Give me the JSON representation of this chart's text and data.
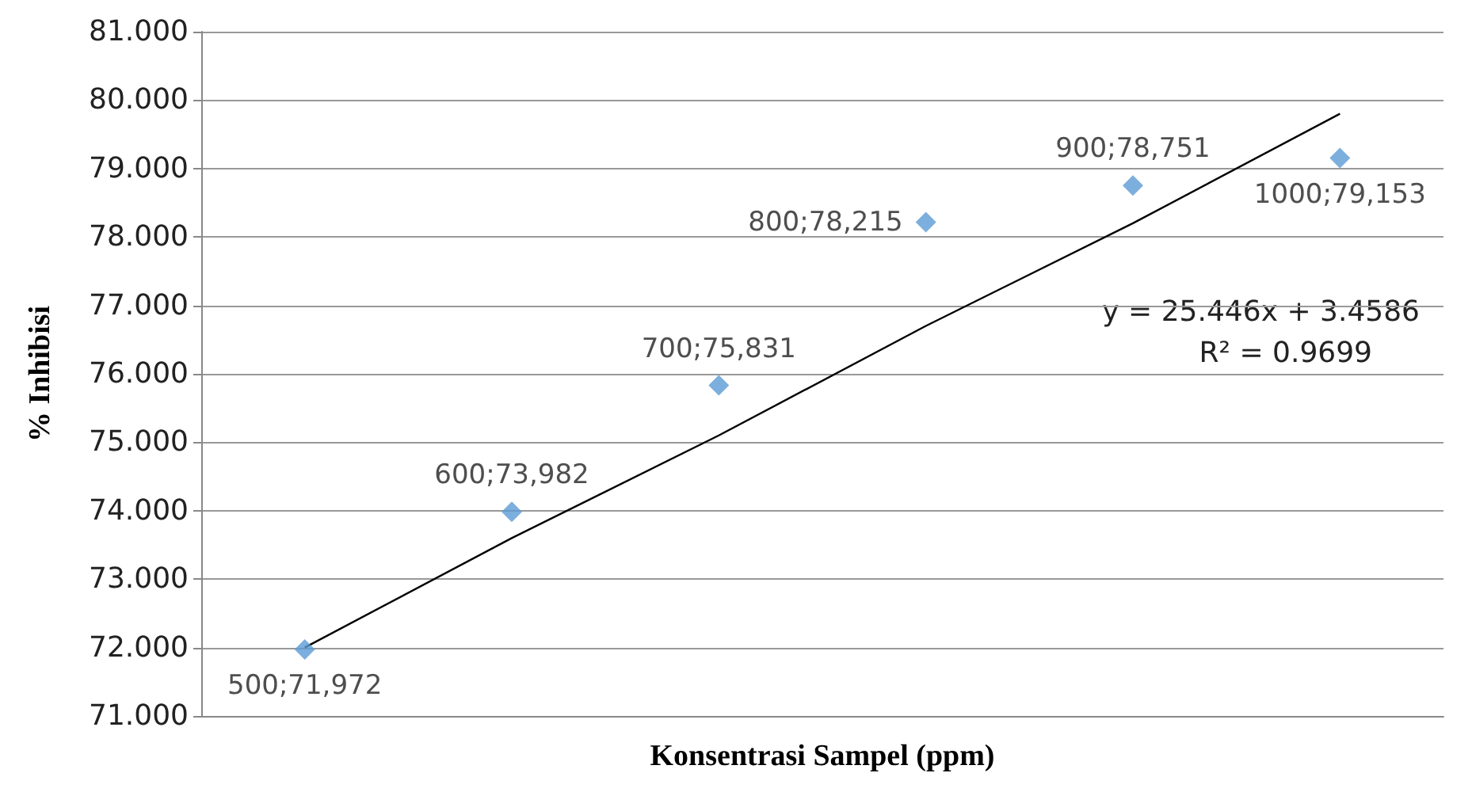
{
  "chart_data": {
    "type": "scatter",
    "xlabel": "Konsentrasi Sampel (ppm)",
    "ylabel": "% Inhibisi",
    "categories": [
      null,
      null,
      null,
      null,
      null,
      null
    ],
    "series": [
      {
        "color": "#5b9bd5",
        "marker": "diamond",
        "values": [
          71.972,
          73.982,
          75.831,
          78.215,
          78.751,
          79.153
        ],
        "value_labels": [
          "500;71,972",
          "600;73,982",
          "700;75,831",
          "800;78,215",
          "900;78,751",
          "1000;79,153"
        ]
      },
      {
        "type": "line",
        "color": "#000000",
        "values": [
          72.0,
          73.6,
          75.1,
          76.7,
          78.2,
          79.8
        ],
        "marker": "none",
        "line_style": "solid"
      }
    ],
    "ylim": [
      71,
      81
    ],
    "yticks": [
      {
        "value": 71,
        "label": "71.000"
      },
      {
        "value": 72,
        "label": "72.000"
      },
      {
        "value": 73,
        "label": "73.000"
      },
      {
        "value": 74,
        "label": "74.000"
      },
      {
        "value": 75,
        "label": "75.000"
      },
      {
        "value": 76,
        "label": "76.000"
      },
      {
        "value": 77,
        "label": "77.000"
      },
      {
        "value": 78,
        "label": "78.000"
      },
      {
        "value": 79,
        "label": "79.000"
      },
      {
        "value": 80,
        "label": "80.000"
      },
      {
        "value": 81,
        "label": "81.000"
      }
    ],
    "tick_labels": "y",
    "grid": "y",
    "annotations": [
      "y = 25.446x + 3.4586",
      "R² = 0.9699"
    ]
  }
}
